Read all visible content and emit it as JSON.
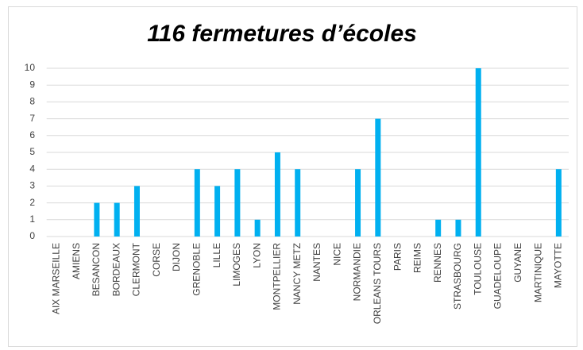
{
  "chart_data": {
    "type": "bar",
    "title": "116 fermetures d’écoles",
    "categories": [
      "AIX MARSEILLE",
      "AMIENS",
      "BESANCON",
      "BORDEAUX",
      "CLERMONT",
      "CORSE",
      "DIJON",
      "GRENOBLE",
      "LILLE",
      "LIMOGES",
      "LYON",
      "MONTPELLIER",
      "NANCY METZ",
      "NANTES",
      "NICE",
      "NORMANDIE",
      "ORLEANS TOURS",
      "PARIS",
      "REIMS",
      "RENNES",
      "STRASBOURG",
      "TOULOUSE",
      "GUADELOUPE",
      "GUYANE",
      "MARTINIQUE",
      "MAYOTTE"
    ],
    "values": [
      0,
      0,
      2,
      2,
      3,
      0,
      0,
      4,
      3,
      4,
      1,
      5,
      4,
      0,
      0,
      4,
      7,
      0,
      0,
      1,
      1,
      10,
      0,
      0,
      0,
      4
    ],
    "color": "#00b0f0",
    "ylim": [
      0,
      10
    ],
    "yticks": [
      0,
      1,
      2,
      3,
      4,
      5,
      6,
      7,
      8,
      9,
      10
    ],
    "grid": true
  }
}
